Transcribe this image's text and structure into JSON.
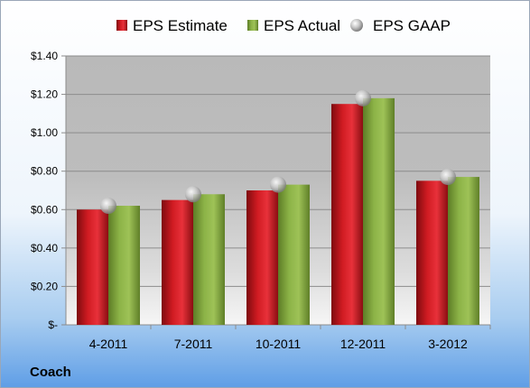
{
  "chart_data": {
    "type": "bar",
    "company": "Coach",
    "categories": [
      "4-2011",
      "7-2011",
      "10-2011",
      "12-2011",
      "3-2012"
    ],
    "series": [
      {
        "name": "EPS Estimate",
        "kind": "bar",
        "color": "#c0141b",
        "values": [
          0.6,
          0.65,
          0.7,
          1.15,
          0.75
        ]
      },
      {
        "name": "EPS Actual",
        "kind": "bar",
        "color": "#7ea037",
        "values": [
          0.62,
          0.68,
          0.73,
          1.18,
          0.77
        ]
      },
      {
        "name": "EPS GAAP",
        "kind": "marker",
        "color": "#b8b8b8",
        "values": [
          0.62,
          0.68,
          0.73,
          1.18,
          0.77
        ]
      }
    ],
    "yticks": [
      "$-",
      "$0.20",
      "$0.40",
      "$0.60",
      "$0.80",
      "$1.00",
      "$1.20",
      "$1.40"
    ],
    "ylim": [
      0,
      1.4
    ],
    "grid": true,
    "legend_position": "top"
  }
}
